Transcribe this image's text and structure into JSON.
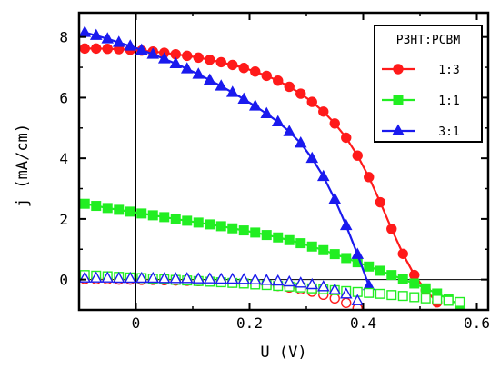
{
  "chart_data": {
    "type": "line",
    "xlabel": "U (V)",
    "ylabel": "j (mA/cm)",
    "xlim": [
      -0.1,
      0.62
    ],
    "ylim": [
      -1.0,
      8.8
    ],
    "xticks": [
      0,
      0.2,
      0.4,
      0.6
    ],
    "xtick_labels": [
      "0",
      "0.2",
      "0.4",
      "0.6"
    ],
    "yticks": [
      0,
      2,
      4,
      6,
      8
    ],
    "ytick_labels": [
      "0",
      "2",
      "4",
      "6",
      "8"
    ],
    "reference_lines": {
      "x": 0,
      "y": 0
    },
    "grid": false,
    "legend": {
      "title": "P3HT:PCBM",
      "placement": "top-right",
      "entries": [
        {
          "label": "1:3",
          "color": "#ff1a1a",
          "marker": "circle"
        },
        {
          "label": "1:1",
          "color": "#22ee22",
          "marker": "square"
        },
        {
          "label": "3:1",
          "color": "#1a1aee",
          "marker": "triangle"
        }
      ]
    },
    "series": [
      {
        "name": "1:3",
        "condition": "light",
        "color": "#ff1a1a",
        "marker": "circle",
        "filled": true,
        "x": [
          -0.09,
          -0.07,
          -0.05,
          -0.03,
          -0.01,
          0.01,
          0.03,
          0.05,
          0.07,
          0.09,
          0.11,
          0.13,
          0.15,
          0.17,
          0.19,
          0.21,
          0.23,
          0.25,
          0.27,
          0.29,
          0.31,
          0.33,
          0.35,
          0.37,
          0.39,
          0.41,
          0.43,
          0.45,
          0.47,
          0.49,
          0.51,
          0.53
        ],
        "y": [
          7.62,
          7.62,
          7.61,
          7.6,
          7.58,
          7.55,
          7.52,
          7.48,
          7.43,
          7.38,
          7.32,
          7.25,
          7.17,
          7.08,
          6.98,
          6.86,
          6.72,
          6.56,
          6.36,
          6.13,
          5.86,
          5.54,
          5.15,
          4.68,
          4.09,
          3.38,
          2.55,
          1.67,
          0.85,
          0.15,
          -0.35,
          -0.75
        ]
      },
      {
        "name": "1:1",
        "condition": "light",
        "color": "#22ee22",
        "marker": "square",
        "filled": true,
        "x": [
          -0.09,
          -0.07,
          -0.05,
          -0.03,
          -0.01,
          0.01,
          0.03,
          0.05,
          0.07,
          0.09,
          0.11,
          0.13,
          0.15,
          0.17,
          0.19,
          0.21,
          0.23,
          0.25,
          0.27,
          0.29,
          0.31,
          0.33,
          0.35,
          0.37,
          0.39,
          0.41,
          0.43,
          0.45,
          0.47,
          0.49,
          0.51,
          0.53,
          0.55,
          0.57
        ],
        "y": [
          2.5,
          2.43,
          2.36,
          2.3,
          2.24,
          2.18,
          2.12,
          2.06,
          2.0,
          1.94,
          1.88,
          1.82,
          1.76,
          1.69,
          1.62,
          1.55,
          1.47,
          1.39,
          1.3,
          1.2,
          1.09,
          0.97,
          0.84,
          0.71,
          0.57,
          0.43,
          0.29,
          0.15,
          0.01,
          -0.13,
          -0.29,
          -0.46,
          -0.64,
          -0.84
        ]
      },
      {
        "name": "3:1",
        "condition": "light",
        "color": "#1a1aee",
        "marker": "triangle",
        "filled": true,
        "x": [
          -0.09,
          -0.07,
          -0.05,
          -0.03,
          -0.01,
          0.01,
          0.03,
          0.05,
          0.07,
          0.09,
          0.11,
          0.13,
          0.15,
          0.17,
          0.19,
          0.21,
          0.23,
          0.25,
          0.27,
          0.29,
          0.31,
          0.33,
          0.35,
          0.37,
          0.39,
          0.41
        ],
        "y": [
          8.15,
          8.05,
          7.94,
          7.82,
          7.7,
          7.57,
          7.43,
          7.28,
          7.12,
          6.95,
          6.77,
          6.58,
          6.38,
          6.17,
          5.95,
          5.72,
          5.47,
          5.2,
          4.88,
          4.5,
          4.0,
          3.4,
          2.65,
          1.78,
          0.83,
          -0.2
        ]
      },
      {
        "name": "1:3",
        "condition": "dark",
        "color": "#ff1a1a",
        "marker": "circle",
        "filled": false,
        "x": [
          -0.09,
          -0.07,
          -0.05,
          -0.03,
          -0.01,
          0.01,
          0.03,
          0.05,
          0.07,
          0.09,
          0.11,
          0.13,
          0.15,
          0.17,
          0.19,
          0.21,
          0.23,
          0.25,
          0.27,
          0.29,
          0.31,
          0.33,
          0.35,
          0.37,
          0.39
        ],
        "y": [
          0.02,
          0.01,
          0.01,
          0.0,
          0.0,
          -0.01,
          -0.01,
          -0.02,
          -0.03,
          -0.04,
          -0.05,
          -0.06,
          -0.08,
          -0.1,
          -0.12,
          -0.14,
          -0.17,
          -0.21,
          -0.26,
          -0.32,
          -0.4,
          -0.5,
          -0.62,
          -0.77,
          -0.95
        ]
      },
      {
        "name": "1:1",
        "condition": "dark",
        "color": "#22ee22",
        "marker": "square",
        "filled": false,
        "x": [
          -0.09,
          -0.07,
          -0.05,
          -0.03,
          -0.01,
          0.01,
          0.03,
          0.05,
          0.07,
          0.09,
          0.11,
          0.13,
          0.15,
          0.17,
          0.19,
          0.21,
          0.23,
          0.25,
          0.27,
          0.29,
          0.31,
          0.33,
          0.35,
          0.37,
          0.39,
          0.41,
          0.43,
          0.45,
          0.47,
          0.49,
          0.51,
          0.53,
          0.55,
          0.57
        ],
        "y": [
          0.15,
          0.13,
          0.11,
          0.09,
          0.07,
          0.05,
          0.03,
          0.01,
          -0.01,
          -0.03,
          -0.05,
          -0.07,
          -0.09,
          -0.11,
          -0.13,
          -0.16,
          -0.18,
          -0.21,
          -0.23,
          -0.26,
          -0.29,
          -0.32,
          -0.35,
          -0.38,
          -0.41,
          -0.44,
          -0.47,
          -0.51,
          -0.54,
          -0.58,
          -0.62,
          -0.66,
          -0.7,
          -0.74
        ]
      },
      {
        "name": "3:1",
        "condition": "dark",
        "color": "#1a1aee",
        "marker": "triangle",
        "filled": false,
        "x": [
          -0.09,
          -0.07,
          -0.05,
          -0.03,
          -0.01,
          0.01,
          0.03,
          0.05,
          0.07,
          0.09,
          0.11,
          0.13,
          0.15,
          0.17,
          0.19,
          0.21,
          0.23,
          0.25,
          0.27,
          0.29,
          0.31,
          0.33,
          0.35,
          0.37,
          0.39
        ],
        "y": [
          0.05,
          0.05,
          0.05,
          0.04,
          0.04,
          0.04,
          0.04,
          0.03,
          0.03,
          0.03,
          0.02,
          0.02,
          0.01,
          0.01,
          0.0,
          -0.01,
          -0.03,
          -0.05,
          -0.08,
          -0.12,
          -0.17,
          -0.24,
          -0.34,
          -0.48,
          -0.7
        ]
      }
    ]
  }
}
